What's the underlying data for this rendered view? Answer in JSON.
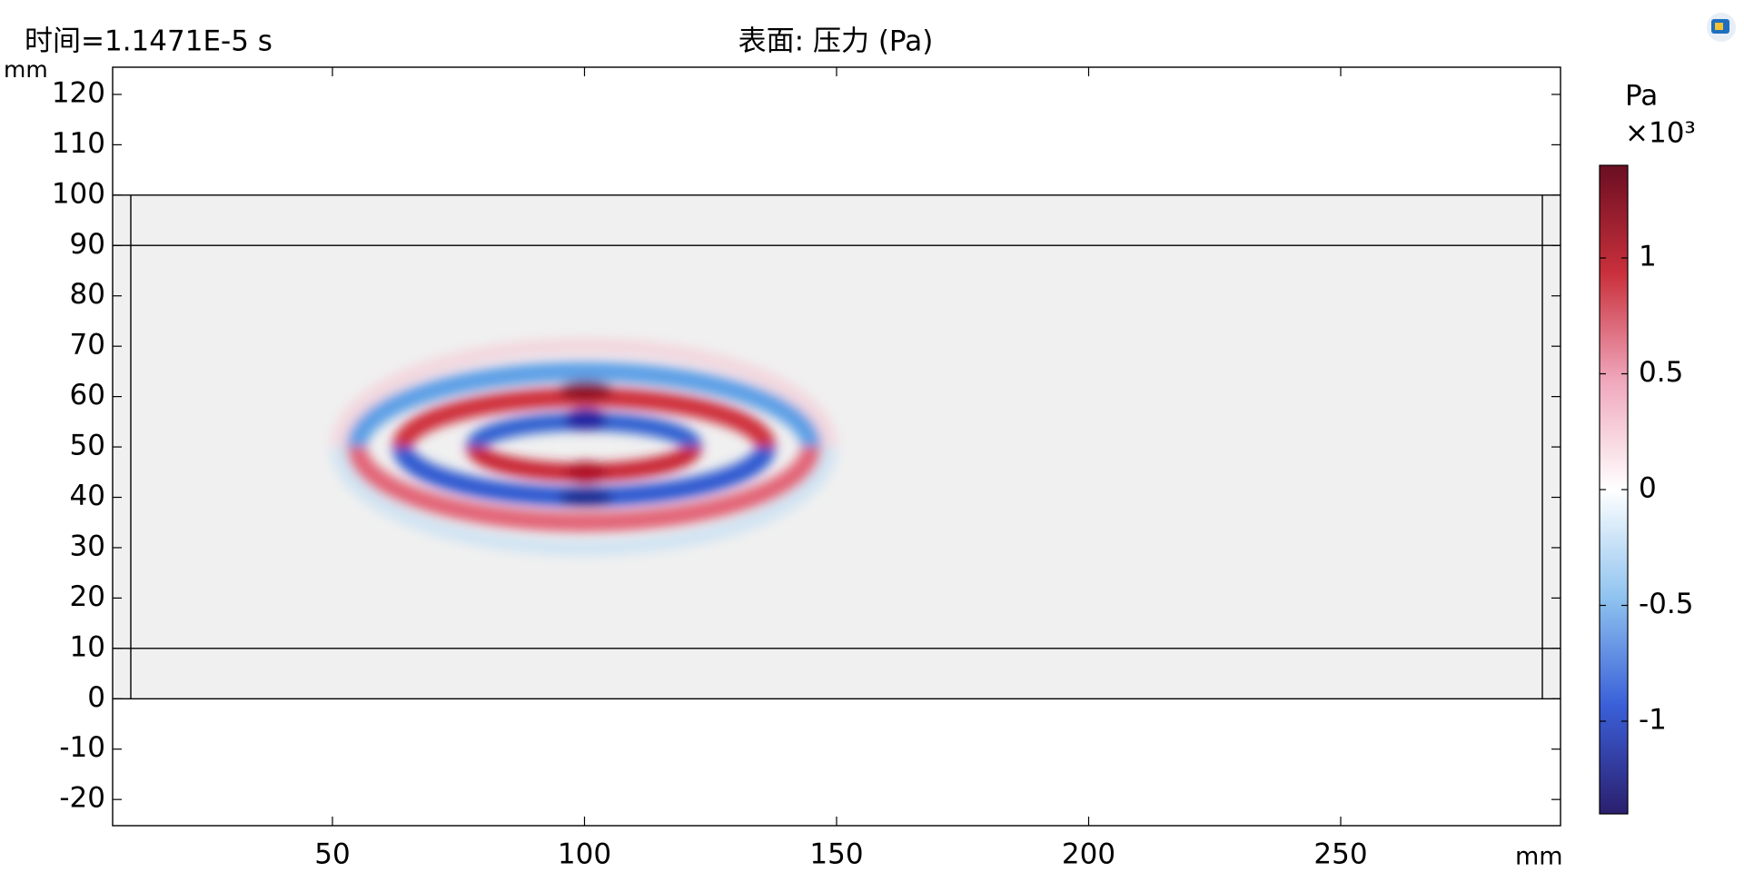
{
  "chart_data": {
    "type": "surface",
    "title": "表面: 压力 (Pa)",
    "annotation": "时间=1.1471E-5 s",
    "x_label": "mm",
    "y_label": "mm",
    "xlim": [
      6.4,
      293.6
    ],
    "ylim": [
      -25.2,
      125.4
    ],
    "xticks": [
      50,
      100,
      150,
      200,
      250
    ],
    "yticks": [
      -20,
      -10,
      0,
      10,
      20,
      30,
      40,
      50,
      60,
      70,
      80,
      90,
      100,
      110,
      120
    ],
    "colorbar": {
      "label": "Pa",
      "multiplier": "×10³",
      "clim": [
        -1.4,
        1.4
      ],
      "ticks": [
        -1,
        -0.5,
        0,
        0.5,
        1
      ],
      "colors": [
        "#2b1f6e",
        "#3a5fd8",
        "#8fc3ef",
        "#ffffff",
        "#f0a8bd",
        "#c9303b",
        "#6b0e22"
      ]
    }
  }
}
